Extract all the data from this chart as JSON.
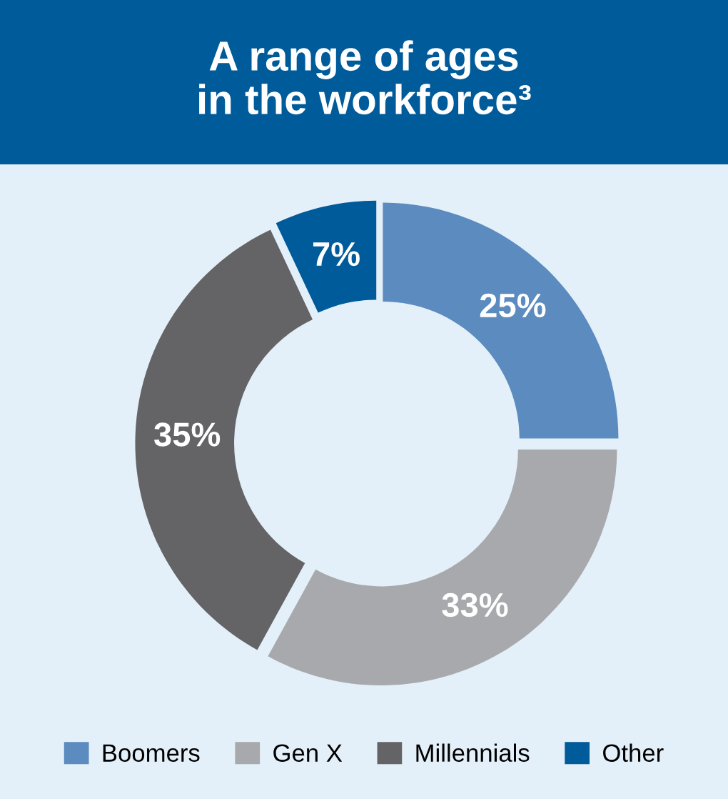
{
  "chart_data": {
    "type": "donut",
    "title": "A range of ages\nin the workforce³",
    "categories": [
      "Boomers",
      "Gen X",
      "Millennials",
      "Other"
    ],
    "values": [
      25,
      33,
      35,
      7
    ],
    "colors": [
      "#5b8bbf",
      "#a8a9ad",
      "#646466",
      "#005b9a"
    ],
    "value_labels": [
      "25%",
      "33%",
      "35%",
      "7%"
    ],
    "legend": "bottom"
  }
}
